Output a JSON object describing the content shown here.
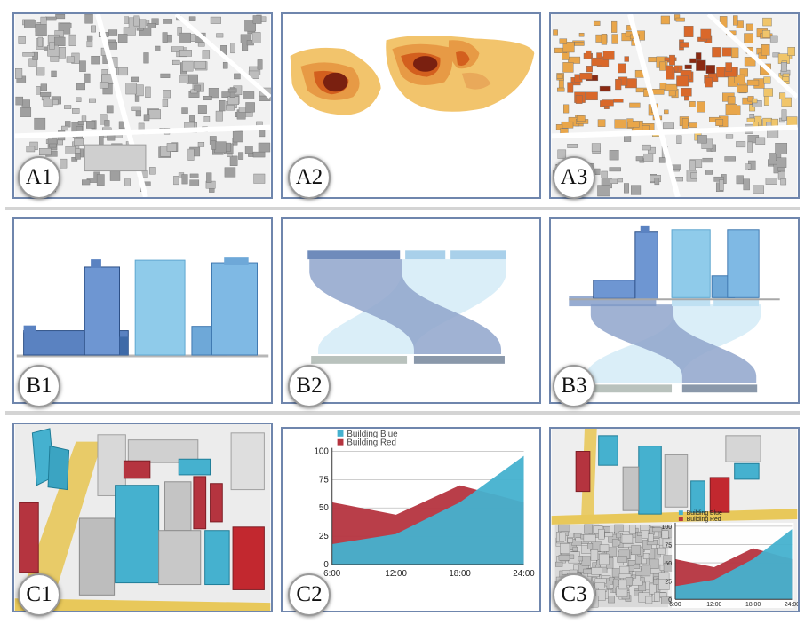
{
  "panels": {
    "a1": {
      "label": "A1"
    },
    "a2": {
      "label": "A2"
    },
    "a3": {
      "label": "A3"
    },
    "b1": {
      "label": "B1"
    },
    "b2": {
      "label": "B2"
    },
    "b3": {
      "label": "B3"
    },
    "c1": {
      "label": "C1"
    },
    "c2": {
      "label": "C2"
    },
    "c3": {
      "label": "C3"
    }
  },
  "colors": {
    "frame": "#6f86ad",
    "building_blue": "#45b1cf",
    "building_red": "#b5343f",
    "heat_light": "#f2c46c",
    "heat_mid": "#de7a2c",
    "heat_dark": "#7a2010"
  },
  "chart_data": {
    "type": "area",
    "x": [
      "6:00",
      "12:00",
      "18:00",
      "24:00"
    ],
    "series": [
      {
        "name": "Building Blue",
        "values": [
          18,
          27,
          55,
          96
        ],
        "color": "#45b1cf"
      },
      {
        "name": "Building Red",
        "values": [
          55,
          44,
          70,
          55
        ],
        "color": "#b5343f"
      }
    ],
    "yticks": [
      "0",
      "25",
      "50",
      "75",
      "100"
    ],
    "ylim": [
      0,
      100
    ],
    "grid": true,
    "legend_position": "top-left"
  }
}
